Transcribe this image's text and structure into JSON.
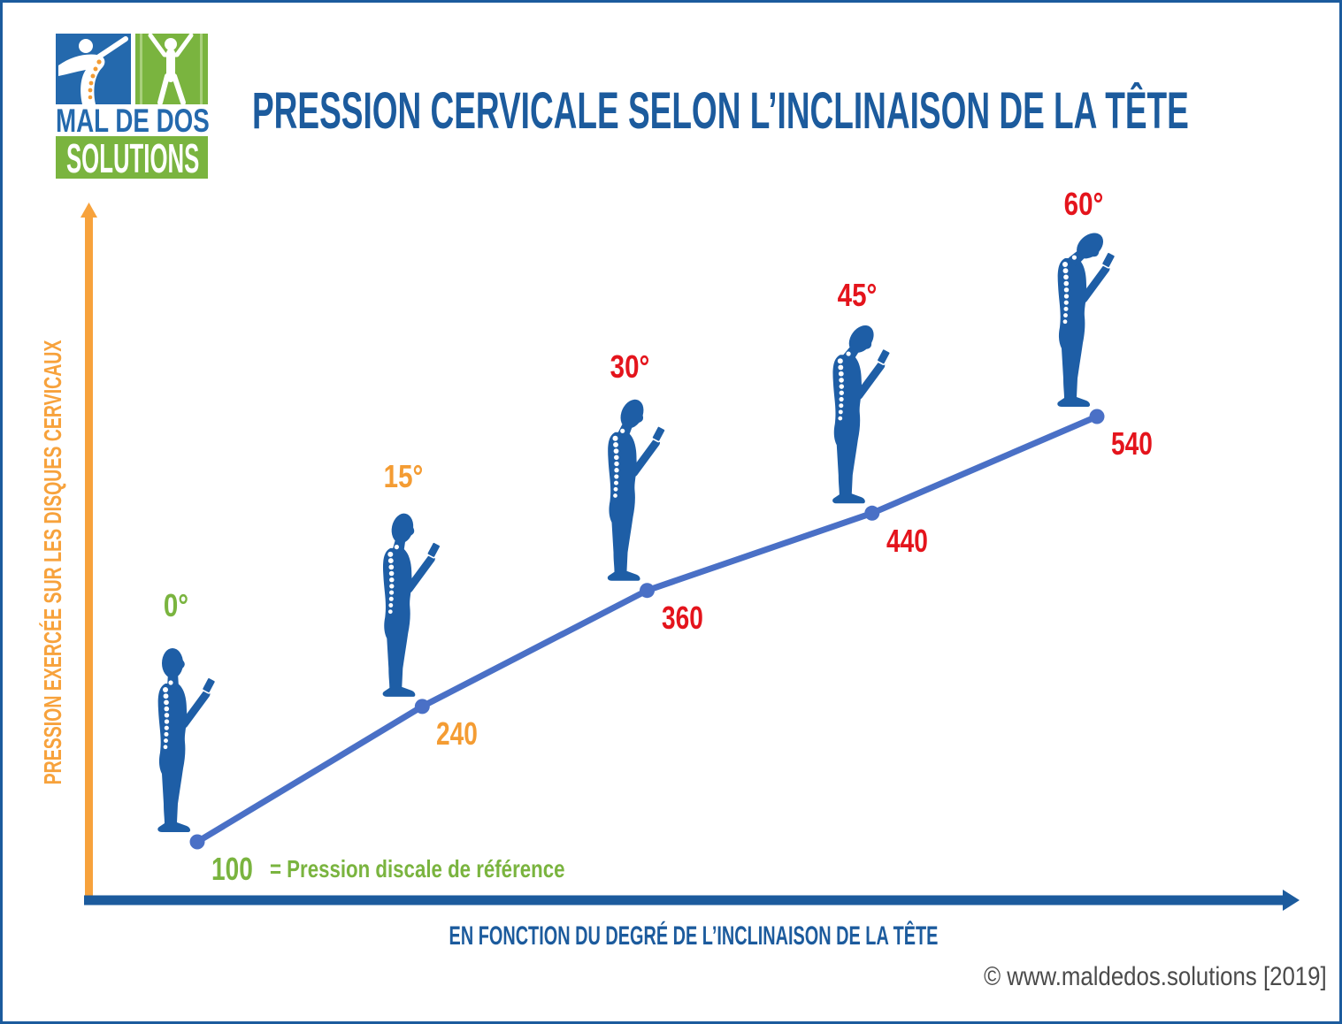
{
  "logo": {
    "line1": "MAL DE DOS",
    "line2": "SOLUTIONS"
  },
  "colors": {
    "brand_blue": "#1c5b9d",
    "logo_blue": "#2469ad",
    "logo_green": "#7ab43f",
    "spine_orange": "#f49c33",
    "y_axis": "#f7a23c",
    "x_axis": "#1c5b9d",
    "figure": "#1e5ea6",
    "copyright": "#4a4a4a"
  },
  "chart_data": {
    "type": "line",
    "title": "PRESSION CERVICALE SELON L’INCLINAISON DE LA TÊTE",
    "xlabel": "EN FONCTION DU DEGRÉ DE L’INCLINAISON DE LA TÊTE",
    "ylabel": "PRESSION EXERCÉE SUR LES DISQUES CERVICAUX",
    "x": [
      0,
      15,
      30,
      45,
      60
    ],
    "x_labels": [
      "0°",
      "15°",
      "30°",
      "45°",
      "60°"
    ],
    "series": [
      {
        "values": [
          100,
          240,
          360,
          440,
          540
        ],
        "color": "#4a70c6"
      }
    ],
    "point_colors": [
      "#7ab43f",
      "#f49c33",
      "#e4141c",
      "#e4141c",
      "#e4141c"
    ],
    "annotation": "= Pression discale de référence",
    "grid": false,
    "legend": "none"
  },
  "copyright": "© www.maldedos.solutions [2019]"
}
